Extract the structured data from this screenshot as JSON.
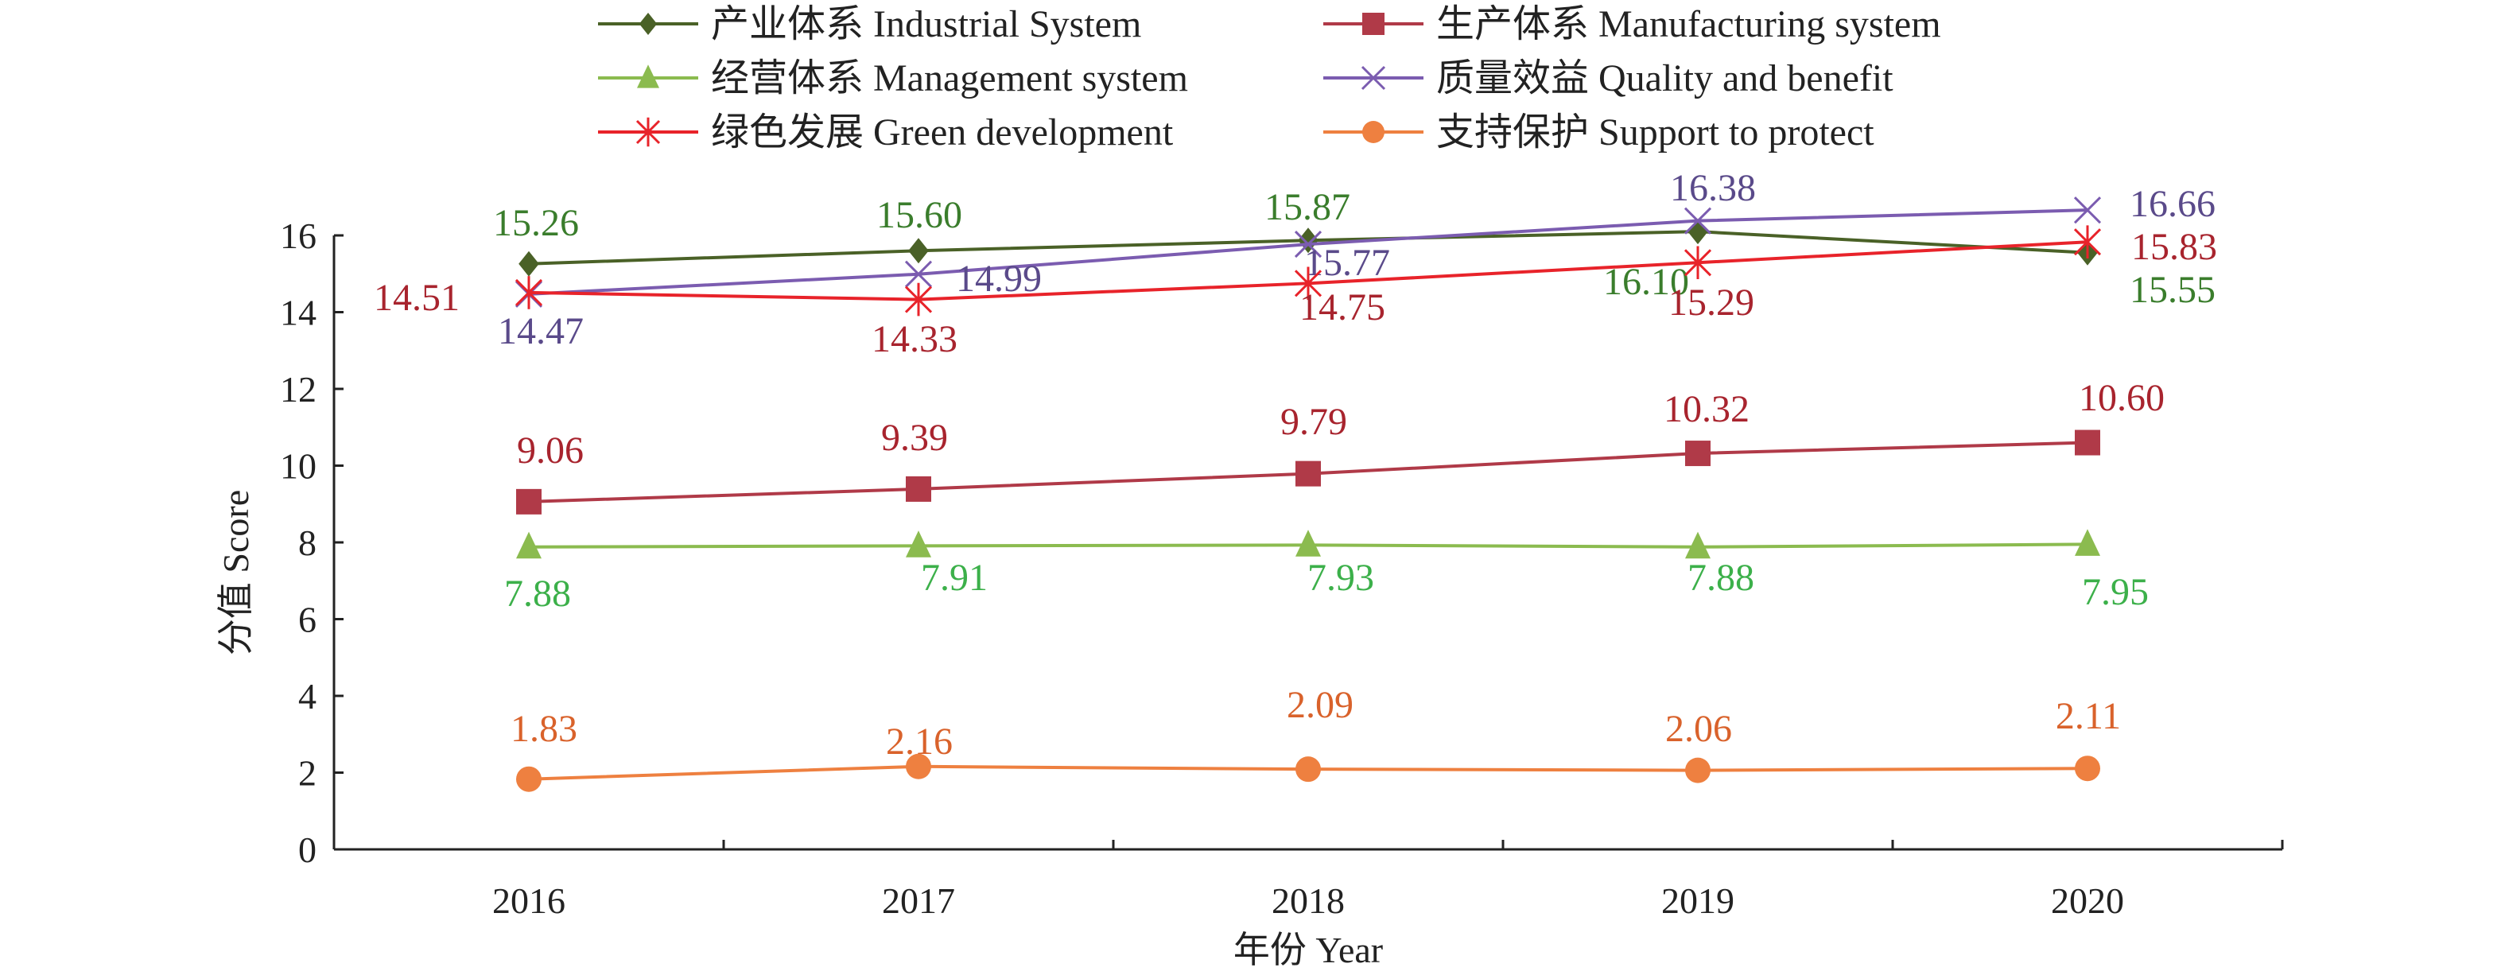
{
  "chart_data": {
    "type": "line",
    "xlabel": "年份 Year",
    "ylabel": "分值 Score",
    "categories": [
      "2016",
      "2017",
      "2018",
      "2019",
      "2020"
    ],
    "ylim": [
      0,
      16
    ],
    "yticks": [
      0,
      2,
      4,
      6,
      8,
      10,
      12,
      14,
      16
    ],
    "grid": false,
    "legend_position": "top",
    "series": [
      {
        "name": "产业体系 Industrial System",
        "values": [
          15.26,
          15.6,
          15.87,
          16.1,
          15.55
        ],
        "labels": [
          "15.26",
          "15.60",
          "15.87",
          "16.10",
          "15.55"
        ],
        "color": "#4a6127",
        "label_color": "#3a7d2c",
        "marker": "diamond"
      },
      {
        "name": "生产体系 Manufacturing system",
        "values": [
          9.06,
          9.39,
          9.79,
          10.32,
          10.6
        ],
        "labels": [
          "9.06",
          "9.39",
          "9.79",
          "10.32",
          "10.60"
        ],
        "color": "#b03a48",
        "label_color": "#a8242e",
        "marker": "square"
      },
      {
        "name": "经营体系 Management system",
        "values": [
          7.88,
          7.91,
          7.93,
          7.88,
          7.95
        ],
        "labels": [
          "7.88",
          "7.91",
          "7.93",
          "7.88",
          "7.95"
        ],
        "color": "#8bbb4f",
        "label_color": "#3cb04a",
        "marker": "triangle"
      },
      {
        "name": "质量效益 Quality and benefit",
        "values": [
          14.47,
          14.99,
          15.77,
          16.38,
          16.66
        ],
        "labels": [
          "14.47",
          "14.99",
          "15.77",
          "16.38",
          "16.66"
        ],
        "color": "#7b5cb0",
        "label_color": "#5a4a8a",
        "marker": "x"
      },
      {
        "name": "绿色发展 Green development",
        "values": [
          14.51,
          14.33,
          14.75,
          15.29,
          15.83
        ],
        "labels": [
          "14.51",
          "14.33",
          "14.75",
          "15.29",
          "15.83"
        ],
        "color": "#e8232a",
        "label_color": "#a8242e",
        "marker": "asterisk"
      },
      {
        "name": "支持保护 Support to protect",
        "values": [
          1.83,
          2.16,
          2.09,
          2.06,
          2.11
        ],
        "labels": [
          "1.83",
          "2.16",
          "2.09",
          "2.06",
          "2.11"
        ],
        "color": "#ee8040",
        "label_color": "#d9622b",
        "marker": "circle"
      }
    ]
  }
}
